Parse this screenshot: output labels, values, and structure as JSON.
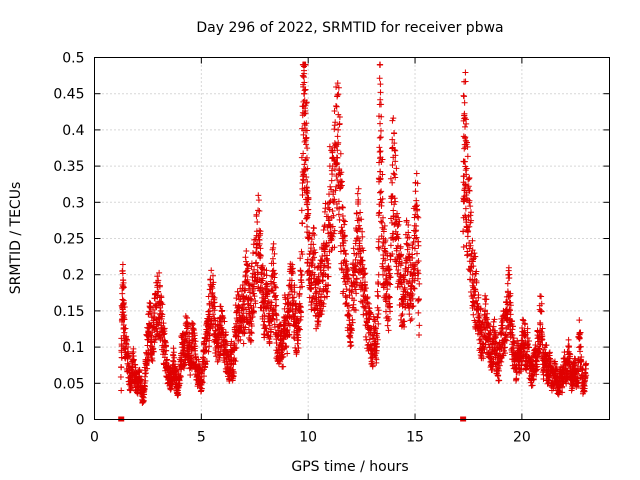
{
  "chart_data": {
    "type": "scatter",
    "title": "Day 296 of 2022, SRMTID for receiver pbwa",
    "xlabel": "GPS time / hours",
    "ylabel": "SRMTID / TECUs",
    "xlim": [
      0,
      24.1
    ],
    "ylim": [
      0,
      0.5
    ],
    "x_ticks": [
      0,
      5,
      10,
      15,
      20
    ],
    "x_tick_labels": [
      "0",
      "5",
      "10",
      "15",
      "20"
    ],
    "y_ticks": [
      0,
      0.05,
      0.1,
      0.15,
      0.2,
      0.25,
      0.3,
      0.35,
      0.4,
      0.45,
      0.5
    ],
    "y_tick_labels": [
      "0",
      "0.05",
      "0.1",
      "0.15",
      "0.2",
      "0.25",
      "0.3",
      "0.35",
      "0.4",
      "0.45",
      "0.5"
    ],
    "grid": true,
    "marker": "+",
    "color": "#e00000",
    "series": [
      {
        "name": "SRMTID",
        "segments": [
          {
            "start": 1.25,
            "end": 15.2,
            "points": [
              [
                1.25,
                0.04
              ],
              [
                1.3,
                0.205
              ],
              [
                1.35,
                0.16
              ],
              [
                1.4,
                0.12
              ],
              [
                1.5,
                0.09
              ],
              [
                1.6,
                0.07
              ],
              [
                1.7,
                0.05
              ],
              [
                1.8,
                0.08
              ],
              [
                1.9,
                0.06
              ],
              [
                2.0,
                0.045
              ],
              [
                2.1,
                0.06
              ],
              [
                2.2,
                0.04
              ],
              [
                2.3,
                0.03
              ],
              [
                2.4,
                0.08
              ],
              [
                2.5,
                0.11
              ],
              [
                2.6,
                0.13
              ],
              [
                2.7,
                0.1
              ],
              [
                2.8,
                0.14
              ],
              [
                2.9,
                0.155
              ],
              [
                3.0,
                0.16
              ],
              [
                3.1,
                0.15
              ],
              [
                3.2,
                0.12
              ],
              [
                3.3,
                0.09
              ],
              [
                3.4,
                0.07
              ],
              [
                3.5,
                0.06
              ],
              [
                3.6,
                0.05
              ],
              [
                3.7,
                0.08
              ],
              [
                3.8,
                0.06
              ],
              [
                3.9,
                0.04
              ],
              [
                4.0,
                0.07
              ],
              [
                4.1,
                0.1
              ],
              [
                4.2,
                0.09
              ],
              [
                4.3,
                0.12
              ],
              [
                4.4,
                0.1
              ],
              [
                4.5,
                0.08
              ],
              [
                4.6,
                0.11
              ],
              [
                4.7,
                0.095
              ],
              [
                4.8,
                0.06
              ],
              [
                4.9,
                0.07
              ],
              [
                5.0,
                0.04
              ],
              [
                5.1,
                0.08
              ],
              [
                5.2,
                0.1
              ],
              [
                5.3,
                0.12
              ],
              [
                5.4,
                0.15
              ],
              [
                5.5,
                0.17
              ],
              [
                5.6,
                0.14
              ],
              [
                5.7,
                0.11
              ],
              [
                5.8,
                0.1
              ],
              [
                5.9,
                0.13
              ],
              [
                6.0,
                0.12
              ],
              [
                6.1,
                0.1
              ],
              [
                6.2,
                0.08
              ],
              [
                6.3,
                0.07
              ],
              [
                6.4,
                0.09
              ],
              [
                6.5,
                0.06
              ],
              [
                6.6,
                0.12
              ],
              [
                6.7,
                0.15
              ],
              [
                6.8,
                0.13
              ],
              [
                6.9,
                0.17
              ],
              [
                7.0,
                0.14
              ],
              [
                7.1,
                0.19
              ],
              [
                7.2,
                0.16
              ],
              [
                7.3,
                0.14
              ],
              [
                7.4,
                0.18
              ],
              [
                7.5,
                0.2
              ],
              [
                7.6,
                0.26
              ],
              [
                7.7,
                0.24
              ],
              [
                7.8,
                0.21
              ],
              [
                7.9,
                0.15
              ],
              [
                8.0,
                0.17
              ],
              [
                8.1,
                0.16
              ],
              [
                8.2,
                0.13
              ],
              [
                8.3,
                0.18
              ],
              [
                8.4,
                0.2
              ],
              [
                8.5,
                0.12
              ],
              [
                8.6,
                0.1
              ],
              [
                8.7,
                0.11
              ],
              [
                8.8,
                0.09
              ],
              [
                8.9,
                0.14
              ],
              [
                9.0,
                0.12
              ],
              [
                9.1,
                0.15
              ],
              [
                9.2,
                0.18
              ],
              [
                9.3,
                0.16
              ],
              [
                9.4,
                0.13
              ],
              [
                9.5,
                0.11
              ],
              [
                9.6,
                0.16
              ],
              [
                9.7,
                0.2
              ],
              [
                9.75,
                0.475
              ],
              [
                9.8,
                0.45
              ],
              [
                9.85,
                0.43
              ],
              [
                9.9,
                0.38
              ],
              [
                9.95,
                0.3
              ],
              [
                10.0,
                0.25
              ],
              [
                10.1,
                0.18
              ],
              [
                10.2,
                0.22
              ],
              [
                10.3,
                0.2
              ],
              [
                10.4,
                0.16
              ],
              [
                10.5,
                0.19
              ],
              [
                10.6,
                0.17
              ],
              [
                10.7,
                0.2
              ],
              [
                10.8,
                0.24
              ],
              [
                10.9,
                0.22
              ],
              [
                11.0,
                0.29
              ],
              [
                11.1,
                0.33
              ],
              [
                11.2,
                0.3
              ],
              [
                11.3,
                0.38
              ],
              [
                11.4,
                0.4
              ],
              [
                11.5,
                0.32
              ],
              [
                11.6,
                0.25
              ],
              [
                11.7,
                0.22
              ],
              [
                11.8,
                0.18
              ],
              [
                11.9,
                0.15
              ],
              [
                12.0,
                0.13
              ],
              [
                12.1,
                0.2
              ],
              [
                12.2,
                0.19
              ],
              [
                12.3,
                0.26
              ],
              [
                12.4,
                0.24
              ],
              [
                12.5,
                0.22
              ],
              [
                12.6,
                0.17
              ],
              [
                12.7,
                0.15
              ],
              [
                12.8,
                0.13
              ],
              [
                12.9,
                0.12
              ],
              [
                13.0,
                0.09
              ],
              [
                13.1,
                0.12
              ],
              [
                13.2,
                0.1
              ],
              [
                13.3,
                0.2
              ],
              [
                13.35,
                0.435
              ],
              [
                13.4,
                0.39
              ],
              [
                13.5,
                0.2
              ],
              [
                13.6,
                0.22
              ],
              [
                13.7,
                0.18
              ],
              [
                13.8,
                0.16
              ],
              [
                13.9,
                0.3
              ],
              [
                14.0,
                0.34
              ],
              [
                14.1,
                0.28
              ],
              [
                14.2,
                0.24
              ],
              [
                14.3,
                0.2
              ],
              [
                14.4,
                0.16
              ],
              [
                14.5,
                0.18
              ],
              [
                14.6,
                0.22
              ],
              [
                14.7,
                0.21
              ],
              [
                14.8,
                0.18
              ],
              [
                14.9,
                0.2
              ],
              [
                15.0,
                0.25
              ],
              [
                15.1,
                0.29
              ],
              [
                15.2,
                0.13
              ]
            ]
          },
          {
            "start": 17.25,
            "end": 23.0,
            "points": [
              [
                17.25,
                0.26
              ],
              [
                17.3,
                0.42
              ],
              [
                17.35,
                0.39
              ],
              [
                17.4,
                0.31
              ],
              [
                17.5,
                0.28
              ],
              [
                17.6,
                0.24
              ],
              [
                17.7,
                0.2
              ],
              [
                17.8,
                0.18
              ],
              [
                17.9,
                0.16
              ],
              [
                18.0,
                0.13
              ],
              [
                18.1,
                0.12
              ],
              [
                18.2,
                0.1
              ],
              [
                18.3,
                0.14
              ],
              [
                18.4,
                0.11
              ],
              [
                18.5,
                0.1
              ],
              [
                18.6,
                0.08
              ],
              [
                18.7,
                0.12
              ],
              [
                18.8,
                0.09
              ],
              [
                18.9,
                0.07
              ],
              [
                19.0,
                0.1
              ],
              [
                19.1,
                0.13
              ],
              [
                19.2,
                0.11
              ],
              [
                19.3,
                0.14
              ],
              [
                19.4,
                0.17
              ],
              [
                19.5,
                0.12
              ],
              [
                19.6,
                0.1
              ],
              [
                19.7,
                0.07
              ],
              [
                19.8,
                0.09
              ],
              [
                19.9,
                0.08
              ],
              [
                20.0,
                0.1
              ],
              [
                20.1,
                0.12
              ],
              [
                20.2,
                0.09
              ],
              [
                20.3,
                0.1
              ],
              [
                20.4,
                0.07
              ],
              [
                20.5,
                0.06
              ],
              [
                20.6,
                0.09
              ],
              [
                20.7,
                0.08
              ],
              [
                20.8,
                0.12
              ],
              [
                20.9,
                0.15
              ],
              [
                21.0,
                0.07
              ],
              [
                21.1,
                0.09
              ],
              [
                21.2,
                0.06
              ],
              [
                21.3,
                0.08
              ],
              [
                21.4,
                0.05
              ],
              [
                21.5,
                0.06
              ],
              [
                21.6,
                0.07
              ],
              [
                21.7,
                0.04
              ],
              [
                21.8,
                0.06
              ],
              [
                21.9,
                0.05
              ],
              [
                22.0,
                0.08
              ],
              [
                22.1,
                0.06
              ],
              [
                22.2,
                0.1
              ],
              [
                22.3,
                0.05
              ],
              [
                22.4,
                0.06
              ],
              [
                22.5,
                0.07
              ],
              [
                22.6,
                0.05
              ],
              [
                22.7,
                0.12
              ],
              [
                22.8,
                0.06
              ],
              [
                22.9,
                0.04
              ],
              [
                23.0,
                0.07
              ]
            ]
          }
        ]
      }
    ],
    "baseline_markers": [
      1.25,
      17.25
    ]
  }
}
